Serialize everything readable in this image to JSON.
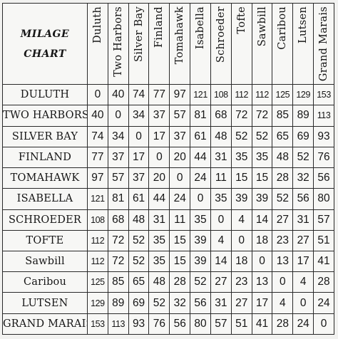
{
  "title_line1": "MILAGE",
  "title_line2": "CHART",
  "towns": [
    "Duluth",
    "Two Harbors",
    "Silver Bay",
    "Finland",
    "Tomahawk",
    "Isabella",
    "Schroeder",
    "Tofte",
    "Sawbill",
    "Caribou",
    "Lutsen",
    "Grand Marais"
  ],
  "row_labels": [
    "DULUTH",
    "TWO HARBORS",
    "SILVER BAY",
    "FINLAND",
    "TOMAHAWK",
    "ISABELLA",
    "SCHROEDER",
    "TOFTE",
    "Sawbill",
    "Caribou",
    "LUTSEN",
    "GRAND MARAIS"
  ],
  "distances": [
    [
      "0",
      "40",
      "74",
      "77",
      "97",
      "121",
      "108",
      "112",
      "112",
      "125",
      "129",
      "153"
    ],
    [
      "40",
      "0",
      "34",
      "37",
      "57",
      "81",
      "68",
      "72",
      "72",
      "85",
      "89",
      "113"
    ],
    [
      "74",
      "34",
      "0",
      "17",
      "37",
      "61",
      "48",
      "52",
      "52",
      "65",
      "69",
      "93"
    ],
    [
      "77",
      "37",
      "17",
      "0",
      "20",
      "44",
      "31",
      "35",
      "35",
      "48",
      "52",
      "76"
    ],
    [
      "97",
      "57",
      "37",
      "20",
      "0",
      "24",
      "11",
      "15",
      "15",
      "28",
      "32",
      "56"
    ],
    [
      "121",
      "81",
      "61",
      "44",
      "24",
      "0",
      "35",
      "39",
      "39",
      "52",
      "56",
      "80"
    ],
    [
      "108",
      "68",
      "48",
      "31",
      "11",
      "35",
      "0",
      "4",
      "14",
      "27",
      "31",
      "57"
    ],
    [
      "112",
      "72",
      "52",
      "35",
      "15",
      "39",
      "4",
      "0",
      "18",
      "23",
      "27",
      "51"
    ],
    [
      "112",
      "72",
      "52",
      "35",
      "15",
      "39",
      "14",
      "18",
      "0",
      "13",
      "17",
      "41"
    ],
    [
      "125",
      "85",
      "65",
      "48",
      "28",
      "52",
      "27",
      "23",
      "13",
      "0",
      "4",
      "28"
    ],
    [
      "129",
      "89",
      "69",
      "52",
      "32",
      "56",
      "31",
      "27",
      "17",
      "4",
      "0",
      "24"
    ],
    [
      "153",
      "113",
      "93",
      "76",
      "56",
      "80",
      "57",
      "51",
      "41",
      "28",
      "24",
      "0"
    ]
  ]
}
